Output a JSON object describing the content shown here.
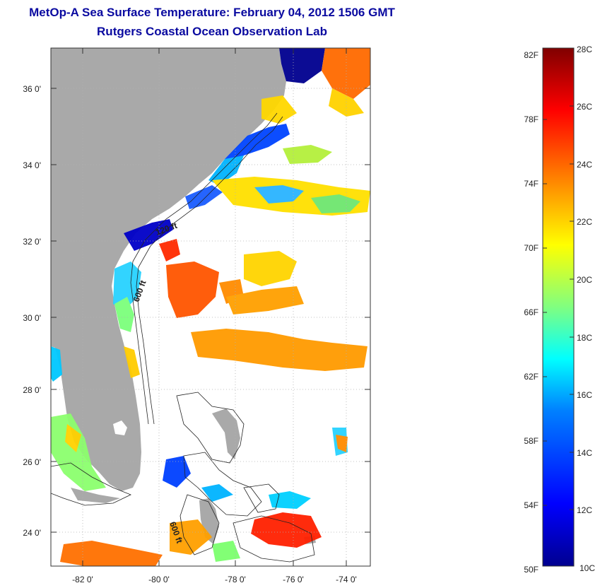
{
  "header": {
    "title": "MetOp-A Sea Surface Temperature:  February 04, 2012 1506 GMT",
    "subtitle": "Rutgers Coastal Ocean Observation Lab"
  },
  "map": {
    "lon_labels": [
      "-82 0'",
      "-80 0'",
      "-78 0'",
      "-76 0'",
      "-74 0'"
    ],
    "lat_labels": [
      "36 0'",
      "34 0'",
      "32 0'",
      "30 0'",
      "28 0'",
      "26 0'",
      "24 0'"
    ],
    "isobath_labels": [
      "120 ft",
      "600 ft",
      "600 ft"
    ],
    "colors": {
      "land": "#a9a9a9",
      "ocean_nodata": "#ffffff",
      "grid": "#b0b0b0"
    }
  },
  "colorbar": {
    "f_labels": [
      "82F",
      "78F",
      "74F",
      "70F",
      "66F",
      "62F",
      "58F",
      "54F",
      "50F"
    ],
    "c_labels": [
      "28C",
      "26C",
      "24C",
      "22C",
      "20C",
      "18C",
      "16C",
      "14C",
      "12C",
      "10C"
    ],
    "range_f": [
      50,
      82
    ],
    "range_c": [
      10,
      28
    ],
    "colormap": [
      "#00008f",
      "#0000ff",
      "#0080ff",
      "#00ffff",
      "#80ff80",
      "#ffff00",
      "#ff8000",
      "#ff0000",
      "#800000"
    ]
  }
}
